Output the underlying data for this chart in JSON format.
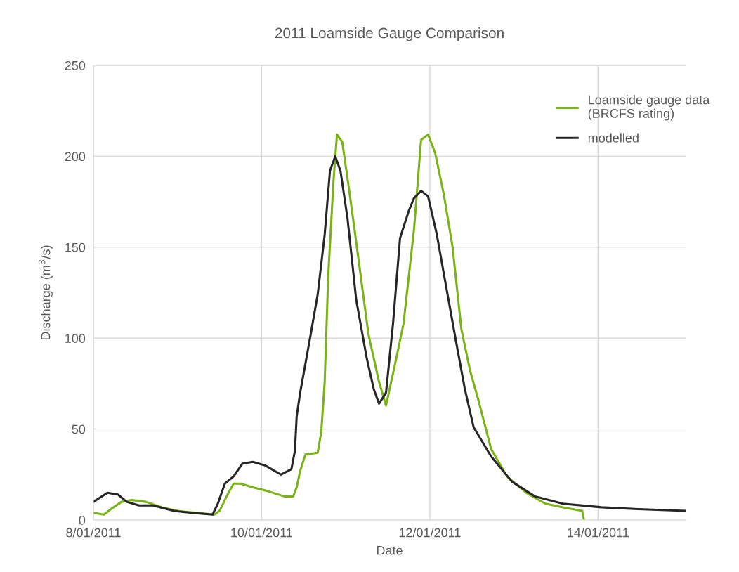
{
  "chart_data": {
    "type": "line",
    "title": "2011 Loamside Gauge Comparison",
    "xlabel": "Date",
    "ylabel": "Discharge (m$^{3}$/s)",
    "xlim": [
      "2011-01-08",
      "2011-01-15T01:00"
    ],
    "xticks": [
      {
        "value": "2011-01-08",
        "label": "8/01/2011"
      },
      {
        "value": "2011-01-10",
        "label": "10/01/2011"
      },
      {
        "value": "2011-01-12",
        "label": "12/01/2011"
      },
      {
        "value": "2011-01-14",
        "label": "14/01/2011"
      }
    ],
    "ylim": [
      0,
      250
    ],
    "yticks": [
      0,
      50,
      100,
      150,
      200,
      250
    ],
    "grid": true,
    "legend": "top right",
    "series": [
      {
        "name": "Loamside gauge data\n(BRCFS rating)",
        "color": "#7ab317",
        "x": [
          "2011-01-08T00:00",
          "2011-01-08T03:00",
          "2011-01-08T05:00",
          "2011-01-08T08:00",
          "2011-01-08T11:00",
          "2011-01-08T15:00",
          "2011-01-08T19:30",
          "2011-01-09T00:00",
          "2011-01-09T05:30",
          "2011-01-09T10:30",
          "2011-01-09T12:00",
          "2011-01-09T14:00",
          "2011-01-09T16:00",
          "2011-01-09T18:00",
          "2011-01-09T21:30",
          "2011-01-10T01:30",
          "2011-01-10T06:30",
          "2011-01-10T09:00",
          "2011-01-10T10:00",
          "2011-01-10T11:00",
          "2011-01-10T12:30",
          "2011-01-10T16:00",
          "2011-01-10T17:00",
          "2011-01-10T18:00",
          "2011-01-10T19:00",
          "2011-01-10T20:30",
          "2011-01-10T21:30",
          "2011-01-10T23:00",
          "2011-01-11T00:30",
          "2011-01-11T02:30",
          "2011-01-11T04:30",
          "2011-01-11T06:30",
          "2011-01-11T09:30",
          "2011-01-11T11:30",
          "2011-01-11T14:00",
          "2011-01-11T16:30",
          "2011-01-11T19:30",
          "2011-01-11T21:30",
          "2011-01-11T23:30",
          "2011-01-12T01:30",
          "2011-01-12T04:00",
          "2011-01-12T06:30",
          "2011-01-12T09:00",
          "2011-01-12T11:30",
          "2011-01-12T14:00",
          "2011-01-12T17:30",
          "2011-01-12T22:00",
          "2011-01-13T03:30",
          "2011-01-13T09:00",
          "2011-01-13T14:00",
          "2011-01-13T19:30",
          "2011-01-13T20:00"
        ],
        "values": [
          4,
          3,
          6,
          10,
          11,
          10,
          7,
          5,
          4,
          3,
          5,
          13,
          20,
          20,
          18,
          16,
          13,
          13,
          18,
          27,
          36,
          37,
          48,
          76,
          134,
          186,
          212,
          208,
          188,
          160,
          131,
          102,
          76,
          63,
          85,
          108,
          160,
          209,
          212,
          202,
          179,
          150,
          105,
          82,
          65,
          39,
          24,
          15,
          9,
          7,
          5,
          0
        ]
      },
      {
        "name": "modelled",
        "color": "#262626",
        "x": [
          "2011-01-08T00:00",
          "2011-01-08T04:00",
          "2011-01-08T07:00",
          "2011-01-08T09:30",
          "2011-01-08T13:00",
          "2011-01-08T17:00",
          "2011-01-08T23:00",
          "2011-01-09T04:00",
          "2011-01-09T10:00",
          "2011-01-09T11:30",
          "2011-01-09T13:30",
          "2011-01-09T16:00",
          "2011-01-09T18:30",
          "2011-01-09T21:30",
          "2011-01-10T01:00",
          "2011-01-10T05:30",
          "2011-01-10T08:30",
          "2011-01-10T09:30",
          "2011-01-10T10:00",
          "2011-01-10T11:00",
          "2011-01-10T14:00",
          "2011-01-10T16:00",
          "2011-01-10T18:00",
          "2011-01-10T19:30",
          "2011-01-10T21:00",
          "2011-01-10T22:30",
          "2011-01-11T00:30",
          "2011-01-11T03:00",
          "2011-01-11T06:00",
          "2011-01-11T08:00",
          "2011-01-11T09:30",
          "2011-01-11T11:30",
          "2011-01-11T13:30",
          "2011-01-11T15:30",
          "2011-01-11T18:00",
          "2011-01-11T19:30",
          "2011-01-11T21:30",
          "2011-01-11T23:30",
          "2011-01-12T02:00",
          "2011-01-12T04:30",
          "2011-01-12T07:30",
          "2011-01-12T10:00",
          "2011-01-12T12:30",
          "2011-01-12T17:30",
          "2011-01-12T23:30",
          "2011-01-13T06:00",
          "2011-01-13T14:00",
          "2011-01-14T01:00",
          "2011-01-14T11:30",
          "2011-01-15T01:00"
        ],
        "values": [
          10,
          15,
          14,
          10,
          8,
          8,
          5,
          4,
          3,
          9,
          20,
          24,
          31,
          32,
          30,
          25,
          28,
          38,
          57,
          70,
          102,
          124,
          157,
          192,
          200,
          192,
          166,
          121,
          89,
          72,
          64,
          70,
          108,
          155,
          170,
          177,
          181,
          178,
          157,
          130,
          98,
          72,
          51,
          35,
          21,
          13,
          9,
          7,
          6,
          5
        ]
      }
    ]
  }
}
